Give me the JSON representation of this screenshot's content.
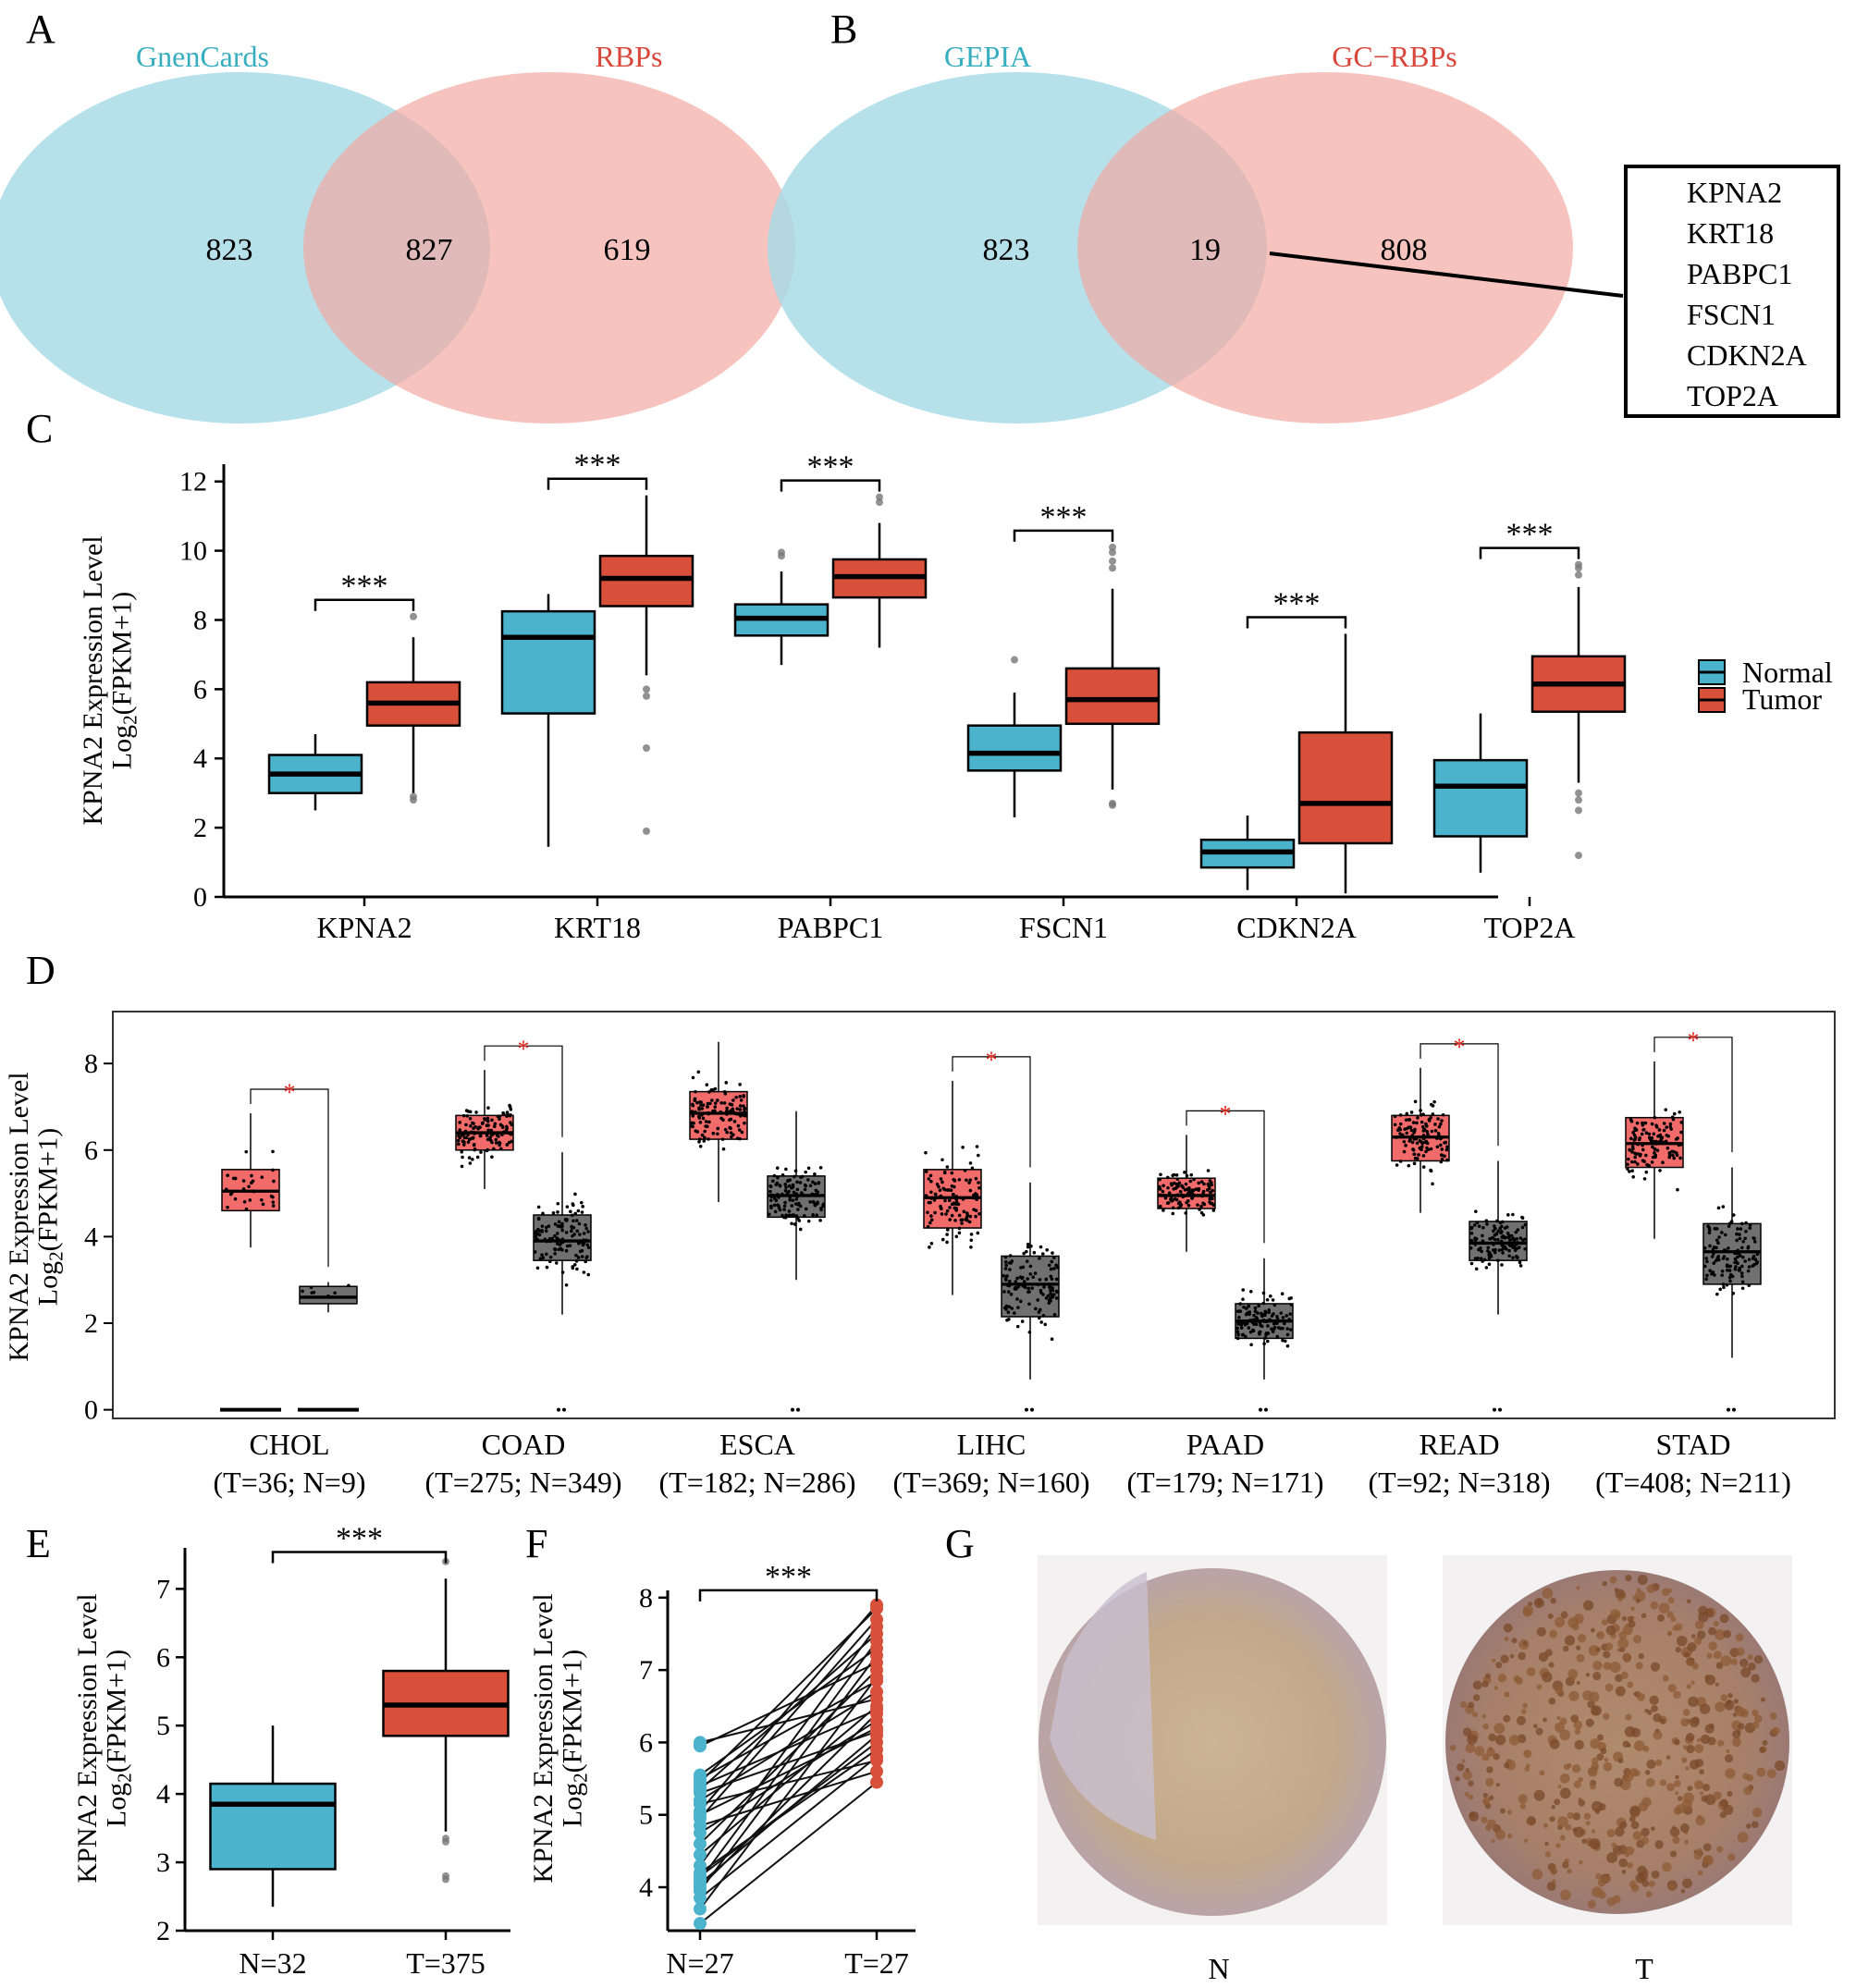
{
  "panels": {
    "A": "A",
    "B": "B",
    "C": "C",
    "D": "D",
    "E": "E",
    "F": "F",
    "G": "G"
  },
  "colors": {
    "venn_left": "#a9dbe6",
    "venn_right": "#f2aaa3",
    "venn_left_label": "#36aebf",
    "venn_right_label": "#d9473b",
    "normal": "#4bb3cc",
    "tumor": "#d9503a",
    "d_tumor": "#f26b6b",
    "d_normal": "#707070",
    "sig": "#e0231b"
  },
  "venn_a": {
    "left_label": "GnenCards",
    "right_label": "RBPs",
    "left": "823",
    "overlap": "827",
    "right": "619"
  },
  "venn_b": {
    "left_label": "GEPIA",
    "right_label": "GC−RBPs",
    "left": "823",
    "overlap": "19",
    "right": "808",
    "genes": [
      "KPNA2",
      "KRT18",
      "PABPC1",
      "FSCN1",
      "CDKN2A",
      "TOP2A"
    ]
  },
  "chart_data": [
    {
      "id": "C",
      "type": "box",
      "ylabel_line1": "KPNA2 Expression Level",
      "ylabel_line2": "Log",
      "ylabel_sub": "2",
      "ylabel_tail": "(FPKM+1)",
      "ylim": [
        0,
        12.5
      ],
      "yticks": [
        "0",
        "2",
        "4",
        "6",
        "8",
        "10",
        "12"
      ],
      "categories": [
        "KPNA2",
        "KRT18",
        "PABPC1",
        "FSCN1",
        "CDKN2A",
        "TOP2A"
      ],
      "sig": [
        "***",
        "***",
        "***",
        "***",
        "***",
        "***"
      ],
      "legend": [
        "Normal",
        "Tumor"
      ],
      "normal": [
        {
          "min": 2.5,
          "q1": 3.0,
          "med": 3.55,
          "q3": 4.1,
          "max": 4.7,
          "out": []
        },
        {
          "min": 1.45,
          "q1": 5.3,
          "med": 7.5,
          "q3": 8.25,
          "max": 8.75,
          "out": []
        },
        {
          "min": 6.7,
          "q1": 7.55,
          "med": 8.05,
          "q3": 8.45,
          "max": 9.4,
          "out": [
            9.85,
            9.95
          ]
        },
        {
          "min": 2.3,
          "q1": 3.65,
          "med": 4.15,
          "q3": 4.95,
          "max": 5.9,
          "out": [
            6.85
          ]
        },
        {
          "min": 0.2,
          "q1": 0.85,
          "med": 1.3,
          "q3": 1.65,
          "max": 2.35,
          "out": []
        },
        {
          "min": 0.7,
          "q1": 1.75,
          "med": 3.2,
          "q3": 3.95,
          "max": 5.3,
          "out": []
        }
      ],
      "tumor": [
        {
          "min": 3.0,
          "q1": 4.95,
          "med": 5.6,
          "q3": 6.2,
          "max": 7.5,
          "out": [
            2.8,
            2.9,
            8.1
          ]
        },
        {
          "min": 6.4,
          "q1": 8.4,
          "med": 9.2,
          "q3": 9.85,
          "max": 11.6,
          "out": [
            6.0,
            5.8,
            4.3,
            1.9
          ]
        },
        {
          "min": 7.2,
          "q1": 8.65,
          "med": 9.25,
          "q3": 9.75,
          "max": 10.8,
          "out": [
            11.4,
            11.55
          ]
        },
        {
          "min": 3.1,
          "q1": 5.0,
          "med": 5.7,
          "q3": 6.6,
          "max": 8.9,
          "out": [
            2.65,
            2.7,
            9.5,
            9.7,
            9.95,
            10.1
          ]
        },
        {
          "min": 0.1,
          "q1": 1.55,
          "med": 2.7,
          "q3": 4.75,
          "max": 7.6,
          "out": []
        },
        {
          "min": 3.3,
          "q1": 5.35,
          "med": 6.15,
          "q3": 6.95,
          "max": 8.95,
          "out": [
            3.0,
            2.8,
            2.5,
            1.2,
            9.3,
            9.5,
            9.6
          ]
        }
      ]
    },
    {
      "id": "D",
      "type": "box-jitter",
      "ylabel_line1": "KPNA2 Expression Level",
      "ylabel_line2": "Log",
      "ylabel_sub": "2",
      "ylabel_tail": "(FPKM+1)",
      "ylim": [
        -0.2,
        9.2
      ],
      "yticks": [
        "0",
        "2",
        "4",
        "6",
        "8"
      ],
      "categories": [
        "CHOL",
        "COAD",
        "ESCA",
        "LIHC",
        "PAAD",
        "READ",
        "STAD"
      ],
      "counts": [
        "(T=36; N=9)",
        "(T=275; N=349)",
        "(T=182; N=286)",
        "(T=369; N=160)",
        "(T=179; N=171)",
        "(T=92; N=318)",
        "(T=408; N=211)"
      ],
      "sig": [
        "*",
        "*",
        "",
        "*",
        "*",
        "*",
        "*"
      ],
      "tumor": [
        {
          "min": 3.75,
          "q1": 4.6,
          "med": 5.05,
          "q3": 5.55,
          "max": 6.85
        },
        {
          "min": 5.1,
          "q1": 6.0,
          "med": 6.4,
          "q3": 6.8,
          "max": 7.85
        },
        {
          "min": 4.8,
          "q1": 6.25,
          "med": 6.85,
          "q3": 7.35,
          "max": 8.5
        },
        {
          "min": 2.65,
          "q1": 4.2,
          "med": 4.9,
          "q3": 5.55,
          "max": 7.6
        },
        {
          "min": 3.65,
          "q1": 4.65,
          "med": 4.95,
          "q3": 5.35,
          "max": 6.35
        },
        {
          "min": 4.55,
          "q1": 5.75,
          "med": 6.3,
          "q3": 6.8,
          "max": 7.9
        },
        {
          "min": 3.95,
          "q1": 5.6,
          "med": 6.15,
          "q3": 6.75,
          "max": 8.05
        }
      ],
      "normal": [
        {
          "min": 2.25,
          "q1": 2.45,
          "med": 2.6,
          "q3": 2.85,
          "max": 2.95
        },
        {
          "min": 2.2,
          "q1": 3.45,
          "med": 3.9,
          "q3": 4.5,
          "max": 5.95
        },
        {
          "min": 3.0,
          "q1": 4.45,
          "med": 4.95,
          "q3": 5.4,
          "max": 6.9
        },
        {
          "min": 0.7,
          "q1": 2.15,
          "med": 2.9,
          "q3": 3.55,
          "max": 5.25
        },
        {
          "min": 0.7,
          "q1": 1.65,
          "med": 2.05,
          "q3": 2.45,
          "max": 3.5
        },
        {
          "min": 2.2,
          "q1": 3.45,
          "med": 3.85,
          "q3": 4.35,
          "max": 5.75
        },
        {
          "min": 1.2,
          "q1": 2.9,
          "med": 3.65,
          "q3": 4.3,
          "max": 5.6
        }
      ]
    },
    {
      "id": "E",
      "type": "box",
      "ylabel_line1": "KPNA2 Expression Level",
      "ylabel_line2": "Log",
      "ylabel_sub": "2",
      "ylabel_tail": "(FPKM+1)",
      "ylim": [
        2,
        7.6
      ],
      "yticks": [
        "2",
        "3",
        "4",
        "5",
        "6",
        "7"
      ],
      "categories": [
        "N=32",
        "T=375"
      ],
      "sig": "***",
      "normal": {
        "min": 2.35,
        "q1": 2.9,
        "med": 3.85,
        "q3": 4.15,
        "max": 5.0
      },
      "tumor": {
        "min": 3.45,
        "q1": 4.85,
        "med": 5.3,
        "q3": 5.8,
        "max": 7.15,
        "out": [
          3.35,
          3.3,
          2.8,
          2.75,
          7.4
        ]
      }
    },
    {
      "id": "F",
      "type": "paired",
      "ylabel_line1": "KPNA2 Expression Level",
      "ylabel_line2": "Log",
      "ylabel_sub": "2",
      "ylabel_tail": "(FPKM+1)",
      "ylim": [
        3.4,
        8.1
      ],
      "yticks": [
        "4",
        "5",
        "6",
        "7",
        "8"
      ],
      "categories": [
        "N=27",
        "T=27"
      ],
      "sig": "***",
      "normal_values": [
        3.5,
        3.7,
        3.85,
        3.95,
        4.0,
        4.05,
        4.1,
        4.15,
        4.2,
        4.3,
        4.45,
        4.6,
        4.75,
        4.85,
        4.95,
        5.0,
        5.05,
        5.15,
        5.2,
        5.3,
        5.35,
        5.4,
        5.45,
        5.5,
        5.55,
        5.95,
        6.0
      ],
      "tumor_values": [
        5.45,
        6.9,
        5.8,
        7.2,
        6.4,
        6.1,
        7.4,
        6.0,
        5.9,
        7.6,
        6.5,
        7.0,
        6.3,
        5.6,
        7.7,
        6.2,
        7.9,
        5.75,
        6.7,
        6.15,
        7.5,
        6.45,
        7.85,
        6.85,
        7.3,
        7.1,
        6.6
      ]
    }
  ],
  "panel_g": {
    "left_label": "N",
    "right_label": "T"
  }
}
